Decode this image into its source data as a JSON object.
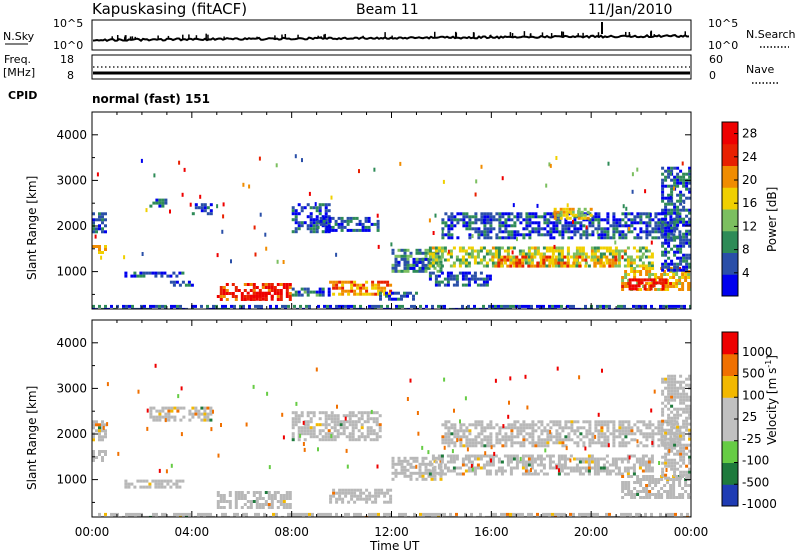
{
  "header": {
    "station": "Kapuskasing (fitACF)",
    "beam": "Beam 11",
    "date": "11/Jan/2010"
  },
  "nsky_panel": {
    "left_label": "N.Sky",
    "left_ticks": [
      "10^5",
      "10^0"
    ],
    "right_label": "N.Search",
    "right_ticks": [
      "10^5",
      "10^0"
    ]
  },
  "freq_panel": {
    "left_label_line1": "Freq.",
    "left_label_line2": "[MHz]",
    "left_ticks": [
      "18",
      "8"
    ],
    "right_label": "Nave",
    "right_ticks": [
      "60",
      "0"
    ],
    "cpid_label": "CPID",
    "mode_text": "normal (fast) 151"
  },
  "colors": {
    "power_scale": [
      "#0000ee",
      "#2a4fa8",
      "#2e8b57",
      "#7cbf60",
      "#f0d000",
      "#f08c00",
      "#e82000",
      "#ee0000"
    ],
    "velocity_scale": [
      "#1f3cb4",
      "#1e7a3c",
      "#66cc44",
      "#c0c0c0",
      "#c0c0c0",
      "#f2b800",
      "#f07000",
      "#ee0000"
    ],
    "ground_scatter": "#b8b8b8"
  },
  "chart_data": [
    {
      "type": "heatmap",
      "title": "Power",
      "xlabel": "Time UT",
      "ylabel": "Slant Range [km]",
      "x_ticks": [
        "00:00",
        "04:00",
        "08:00",
        "12:00",
        "16:00",
        "20:00",
        "00:00"
      ],
      "x_range_hours": [
        0,
        24
      ],
      "y_ticks": [
        1000,
        2000,
        3000,
        4000
      ],
      "ylim": [
        180,
        4500
      ],
      "colorbar_label": "Power [dB]",
      "colorbar_ticks": [
        4,
        8,
        12,
        16,
        20,
        24,
        28
      ],
      "colorbar_range": [
        0,
        30
      ],
      "regions": [
        {
          "t": [
            0.0,
            0.6
          ],
          "r": [
            1450,
            1650
          ],
          "v": 18
        },
        {
          "t": [
            0.0,
            0.6
          ],
          "r": [
            1900,
            2300
          ],
          "v": 6
        },
        {
          "t": [
            2.3,
            3.0
          ],
          "r": [
            2450,
            2600
          ],
          "v": 6
        },
        {
          "t": [
            4.0,
            4.8
          ],
          "r": [
            2300,
            2500
          ],
          "v": 5
        },
        {
          "t": [
            1.3,
            3.7
          ],
          "r": [
            900,
            1000
          ],
          "v": 5
        },
        {
          "t": [
            3.0,
            4.0
          ],
          "r": [
            680,
            800
          ],
          "v": 4
        },
        {
          "t": [
            5.0,
            8.0
          ],
          "r": [
            400,
            750
          ],
          "v": 26
        },
        {
          "t": [
            6.2,
            7.2
          ],
          "r": [
            420,
            560
          ],
          "v": 29
        },
        {
          "t": [
            8.0,
            9.5
          ],
          "r": [
            1900,
            2500
          ],
          "v": 5
        },
        {
          "t": [
            9.0,
            11.5
          ],
          "r": [
            1900,
            2200
          ],
          "v": 6
        },
        {
          "t": [
            9.5,
            12.0
          ],
          "r": [
            500,
            800
          ],
          "v": 20
        },
        {
          "t": [
            8.0,
            9.5
          ],
          "r": [
            500,
            650
          ],
          "v": 7
        },
        {
          "t": [
            11.5,
            13.0
          ],
          "r": [
            380,
            560
          ],
          "v": 5
        },
        {
          "t": [
            12.0,
            14.0
          ],
          "r": [
            1000,
            1500
          ],
          "v": 10
        },
        {
          "t": [
            12.0,
            13.5
          ],
          "r": [
            1100,
            1300
          ],
          "v": 5
        },
        {
          "t": [
            13.5,
            22.5
          ],
          "r": [
            1100,
            1550
          ],
          "v": 14
        },
        {
          "t": [
            16.0,
            21.0
          ],
          "r": [
            1150,
            1350
          ],
          "v": 20
        },
        {
          "t": [
            14.0,
            23.5
          ],
          "r": [
            1750,
            2300
          ],
          "v": 5
        },
        {
          "t": [
            18.5,
            20.0
          ],
          "r": [
            2200,
            2400
          ],
          "v": 17
        },
        {
          "t": [
            21.2,
            24.0
          ],
          "r": [
            600,
            1100
          ],
          "v": 18
        },
        {
          "t": [
            21.5,
            23.0
          ],
          "r": [
            600,
            850
          ],
          "v": 28
        },
        {
          "t": [
            22.8,
            24.0
          ],
          "r": [
            1000,
            3300
          ],
          "v": 6
        },
        {
          "t": [
            13.5,
            16.0
          ],
          "r": [
            700,
            1000
          ],
          "v": 5
        },
        {
          "t": [
            0.0,
            24.0
          ],
          "r": [
            190,
            270
          ],
          "v": 5
        }
      ]
    },
    {
      "type": "heatmap",
      "title": "Velocity",
      "xlabel": "Time UT",
      "ylabel": "Slant Range [km]",
      "x_ticks": [
        "00:00",
        "04:00",
        "08:00",
        "12:00",
        "16:00",
        "20:00",
        "00:00"
      ],
      "x_range_hours": [
        0,
        24
      ],
      "y_ticks": [
        1000,
        2000,
        3000,
        4000
      ],
      "ylim": [
        180,
        4500
      ],
      "colorbar_label": "Velocity [m s^-1]",
      "colorbar_ticks": [
        1000,
        500,
        100,
        25,
        -25,
        -100,
        -500,
        -1000
      ],
      "regions": [
        {
          "t": [
            0.0,
            0.6
          ],
          "r": [
            1450,
            1650
          ],
          "v": 0,
          "gs": true
        },
        {
          "t": [
            0.0,
            0.6
          ],
          "r": [
            1900,
            2300
          ],
          "v": 0,
          "gs": true
        },
        {
          "t": [
            2.3,
            4.8
          ],
          "r": [
            2300,
            2600
          ],
          "v": 0,
          "gs": true
        },
        {
          "t": [
            1.3,
            3.7
          ],
          "r": [
            850,
            1000
          ],
          "v": 0,
          "gs": true
        },
        {
          "t": [
            5.0,
            8.0
          ],
          "r": [
            400,
            750
          ],
          "v": 0,
          "gs": true
        },
        {
          "t": [
            8.0,
            11.5
          ],
          "r": [
            1900,
            2500
          ],
          "v": 0,
          "gs": true
        },
        {
          "t": [
            9.5,
            12.0
          ],
          "r": [
            500,
            800
          ],
          "v": 0,
          "gs": true
        },
        {
          "t": [
            12.0,
            14.0
          ],
          "r": [
            1000,
            1500
          ],
          "v": 0,
          "gs": true
        },
        {
          "t": [
            13.5,
            22.5
          ],
          "r": [
            1100,
            1550
          ],
          "v": 0,
          "gs": true
        },
        {
          "t": [
            14.0,
            23.5
          ],
          "r": [
            1750,
            2300
          ],
          "v": 0,
          "gs": true
        },
        {
          "t": [
            21.2,
            24.0
          ],
          "r": [
            600,
            1100
          ],
          "v": 0,
          "gs": true
        },
        {
          "t": [
            22.8,
            24.0
          ],
          "r": [
            1000,
            3300
          ],
          "v": 0,
          "gs": true
        },
        {
          "t": [
            0.0,
            24.0
          ],
          "r": [
            190,
            270
          ],
          "v": 0,
          "gs": true
        }
      ]
    }
  ]
}
